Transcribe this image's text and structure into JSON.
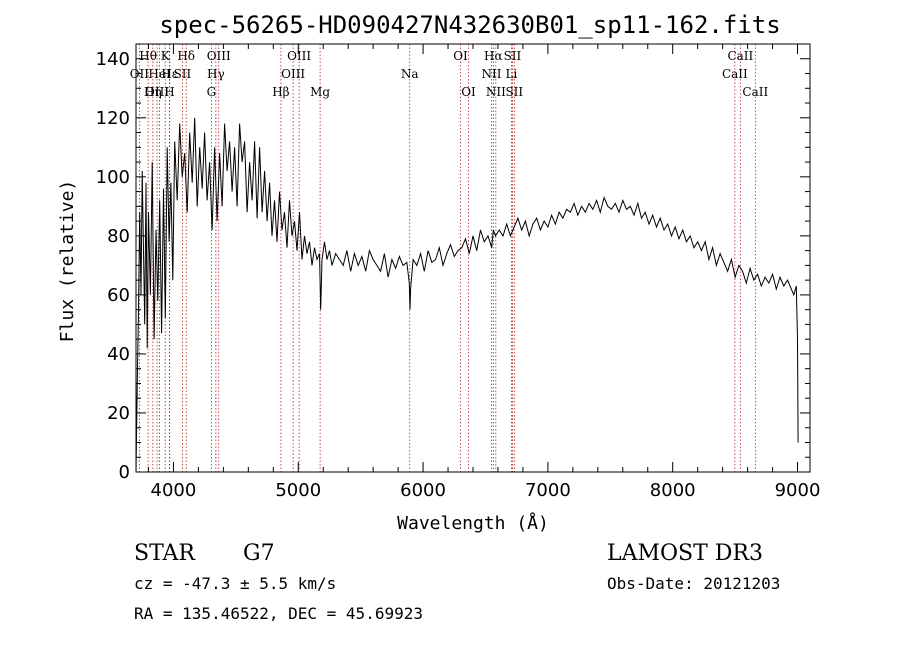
{
  "chart_data": {
    "type": "line",
    "title": "spec-56265-HD090427N432630B01_sp11-162.fits",
    "xlabel": "Wavelength (Å)",
    "ylabel": "Flux (relative)",
    "xlim": [
      3700,
      9100
    ],
    "ylim": [
      0,
      145
    ],
    "xticks": [
      4000,
      5000,
      6000,
      7000,
      8000,
      9000
    ],
    "yticks": [
      0,
      20,
      40,
      60,
      80,
      100,
      120,
      140
    ],
    "series": [
      {
        "name": "flux",
        "x": [
          3700,
          3710,
          3720,
          3730,
          3740,
          3750,
          3760,
          3770,
          3780,
          3790,
          3800,
          3815,
          3830,
          3845,
          3860,
          3875,
          3890,
          3905,
          3920,
          3935,
          3950,
          3965,
          3980,
          3995,
          4010,
          4030,
          4050,
          4070,
          4090,
          4110,
          4130,
          4150,
          4170,
          4190,
          4210,
          4230,
          4250,
          4270,
          4290,
          4310,
          4330,
          4350,
          4370,
          4390,
          4410,
          4430,
          4450,
          4470,
          4490,
          4510,
          4530,
          4550,
          4570,
          4590,
          4610,
          4630,
          4650,
          4670,
          4690,
          4710,
          4730,
          4750,
          4770,
          4790,
          4810,
          4830,
          4850,
          4870,
          4890,
          4910,
          4930,
          4950,
          4970,
          4990,
          5010,
          5030,
          5050,
          5070,
          5090,
          5110,
          5130,
          5150,
          5170,
          5180,
          5190,
          5210,
          5230,
          5250,
          5270,
          5300,
          5330,
          5360,
          5390,
          5420,
          5450,
          5480,
          5510,
          5540,
          5570,
          5600,
          5630,
          5660,
          5690,
          5720,
          5750,
          5780,
          5810,
          5840,
          5870,
          5890,
          5895,
          5900,
          5920,
          5950,
          5980,
          6010,
          6040,
          6070,
          6100,
          6130,
          6160,
          6190,
          6220,
          6250,
          6280,
          6310,
          6340,
          6370,
          6400,
          6430,
          6460,
          6490,
          6520,
          6550,
          6563,
          6580,
          6610,
          6640,
          6670,
          6700,
          6730,
          6760,
          6790,
          6820,
          6850,
          6880,
          6910,
          6940,
          6970,
          7000,
          7030,
          7060,
          7090,
          7120,
          7150,
          7180,
          7210,
          7240,
          7270,
          7300,
          7330,
          7360,
          7390,
          7420,
          7450,
          7480,
          7510,
          7540,
          7570,
          7600,
          7630,
          7660,
          7690,
          7720,
          7750,
          7780,
          7810,
          7840,
          7870,
          7900,
          7930,
          7960,
          7990,
          8020,
          8050,
          8080,
          8110,
          8140,
          8170,
          8200,
          8230,
          8260,
          8290,
          8320,
          8350,
          8380,
          8410,
          8440,
          8470,
          8500,
          8530,
          8560,
          8590,
          8620,
          8650,
          8680,
          8710,
          8740,
          8770,
          8800,
          8830,
          8860,
          8890,
          8920,
          8950,
          8970,
          8990,
          9000,
          9005
        ],
        "y": [
          0,
          28,
          55,
          88,
          60,
          102,
          75,
          50,
          98,
          42,
          88,
          60,
          105,
          45,
          82,
          58,
          92,
          47,
          96,
          52,
          110,
          78,
          98,
          65,
          112,
          92,
          118,
          100,
          108,
          88,
          115,
          98,
          120,
          90,
          110,
          96,
          115,
          92,
          105,
          82,
          110,
          85,
          108,
          90,
          118,
          102,
          112,
          95,
          110,
          90,
          118,
          105,
          112,
          88,
          105,
          92,
          112,
          86,
          110,
          88,
          102,
          85,
          98,
          80,
          92,
          78,
          95,
          82,
          88,
          76,
          92,
          80,
          85,
          75,
          88,
          72,
          80,
          74,
          78,
          70,
          76,
          72,
          74,
          55,
          72,
          78,
          72,
          75,
          70,
          74,
          72,
          70,
          75,
          68,
          74,
          70,
          73,
          68,
          75,
          72,
          70,
          68,
          74,
          66,
          72,
          69,
          73,
          70,
          71,
          64,
          55,
          62,
          72,
          70,
          74,
          68,
          75,
          71,
          72,
          76,
          70,
          74,
          77,
          73,
          75,
          76,
          79,
          74,
          80,
          75,
          82,
          78,
          80,
          76,
          82,
          80,
          82,
          80,
          84,
          80,
          83,
          86,
          82,
          85,
          80,
          84,
          86,
          82,
          85,
          83,
          87,
          84,
          88,
          86,
          89,
          88,
          91,
          87,
          90,
          88,
          91,
          89,
          92,
          88,
          93,
          90,
          89,
          91,
          88,
          92,
          89,
          90,
          87,
          91,
          86,
          88,
          84,
          87,
          83,
          86,
          82,
          84,
          80,
          83,
          79,
          82,
          78,
          80,
          76,
          78,
          75,
          78,
          72,
          76,
          70,
          74,
          71,
          68,
          72,
          66,
          70,
          68,
          64,
          69,
          65,
          67,
          63,
          66,
          64,
          67,
          62,
          66,
          63,
          65,
          62,
          60,
          63,
          45,
          10
        ]
      }
    ],
    "spectral_lines": [
      {
        "label": "Hθ",
        "wavelength": 3797,
        "row": 0
      },
      {
        "label": "OII",
        "wavelength": 3727,
        "row": 1
      },
      {
        "label": "OIII",
        "wavelength": 3869,
        "row": 2
      },
      {
        "label": "K",
        "wavelength": 3934,
        "row": 0
      },
      {
        "label": "H",
        "wavelength": 3968,
        "row": 2
      },
      {
        "label": "HeI",
        "wavelength": 3889,
        "row": 1
      },
      {
        "label": "Hη",
        "wavelength": 3835,
        "row": 2
      },
      {
        "label": "Hε",
        "wavelength": 3970,
        "row": 1
      },
      {
        "label": "SII",
        "wavelength": 4072,
        "row": 1
      },
      {
        "label": "Hδ",
        "wavelength": 4102,
        "row": 0
      },
      {
        "label": "OIII",
        "wavelength": 4363,
        "row": 0
      },
      {
        "label": "Hγ",
        "wavelength": 4340,
        "row": 1
      },
      {
        "label": "G",
        "wavelength": 4304,
        "row": 2
      },
      {
        "label": "Hβ",
        "wavelength": 4861,
        "row": 2
      },
      {
        "label": "OIII",
        "wavelength": 5007,
        "row": 0
      },
      {
        "label": "OIII",
        "wavelength": 4959,
        "row": 1
      },
      {
        "label": "Mg",
        "wavelength": 5175,
        "row": 2
      },
      {
        "label": "Na",
        "wavelength": 5893,
        "row": 1
      },
      {
        "label": "OI",
        "wavelength": 6300,
        "row": 0
      },
      {
        "label": "OI",
        "wavelength": 6364,
        "row": 2
      },
      {
        "label": "Hα",
        "wavelength": 6563,
        "row": 0
      },
      {
        "label": "NII",
        "wavelength": 6548,
        "row": 1
      },
      {
        "label": "NII",
        "wavelength": 6583,
        "row": 2
      },
      {
        "label": "SII",
        "wavelength": 6716,
        "row": 0
      },
      {
        "label": "Li",
        "wavelength": 6708,
        "row": 1
      },
      {
        "label": "SII",
        "wavelength": 6731,
        "row": 2
      },
      {
        "label": "CaII",
        "wavelength": 8542,
        "row": 0
      },
      {
        "label": "CaII",
        "wavelength": 8498,
        "row": 1
      },
      {
        "label": "CaII",
        "wavelength": 8662,
        "row": 2
      }
    ],
    "line_color": "#000000",
    "marker_color": "#b22222"
  },
  "info": {
    "object_class": "STAR",
    "subclass": "G7",
    "survey": "LAMOST DR3",
    "redshift": "cz = -47.3 ± 5.5 km/s",
    "obs_date": "Obs-Date: 20121203",
    "coords": "RA = 135.46522, DEC =  45.69923"
  }
}
